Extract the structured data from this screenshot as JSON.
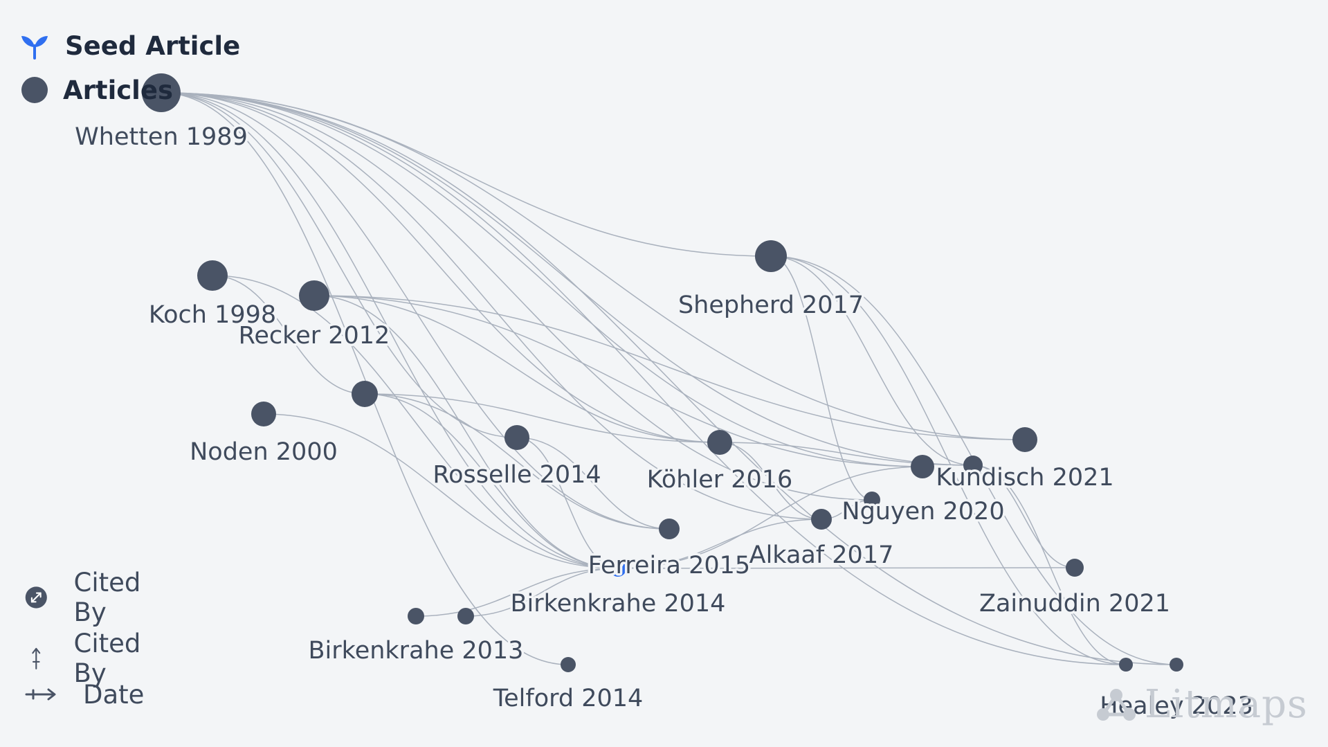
{
  "legend": {
    "seed_label": "Seed Article",
    "articles_label": "Articles",
    "seed_icon": "sprout-icon",
    "article_icon": "dot-icon"
  },
  "axis_legend": {
    "size_label": "Cited By",
    "size_icon": "expand-diagonal-icon",
    "y_label": "Cited By",
    "y_icon": "arrow-up-icon",
    "x_label": "Date",
    "x_icon": "arrow-right-icon"
  },
  "watermark": {
    "text": "Litmaps",
    "icon": "litmaps-logo-icon"
  },
  "colors": {
    "node": "#4a5466",
    "seed": "#2f6ff0",
    "edge": "#a9b1bd",
    "text": "#3f4a5c"
  },
  "articles": [
    {
      "id": "whetten1989",
      "label": "Whetten 1989"
    },
    {
      "id": "koch1998",
      "label": "Koch 1998"
    },
    {
      "id": "recker2012",
      "label": "Recker 2012"
    },
    {
      "id": "noden2000",
      "label": "Noden 2000"
    },
    {
      "id": "unlabeled_a",
      "label": ""
    },
    {
      "id": "rosselle2014",
      "label": "Rosselle 2014"
    },
    {
      "id": "shepherd2017",
      "label": "Shepherd 2017"
    },
    {
      "id": "kohler2016",
      "label": "Köhler 2016"
    },
    {
      "id": "kundisch2021",
      "label": "Kundisch 2021"
    },
    {
      "id": "unlabeled_b",
      "label": ""
    },
    {
      "id": "unlabeled_c",
      "label": ""
    },
    {
      "id": "nguyen2020",
      "label": "Nguyen 2020"
    },
    {
      "id": "alkaaf2017",
      "label": "Alkaaf 2017"
    },
    {
      "id": "ferreira2015",
      "label": "Ferreira 2015"
    },
    {
      "id": "birkenkrahe2014",
      "label": "Birkenkrahe 2014",
      "seed": true
    },
    {
      "id": "zainuddin2021",
      "label": "Zainuddin 2021"
    },
    {
      "id": "birkenkrahe2013",
      "label": "Birkenkrahe 2013"
    },
    {
      "id": "unlabeled_d",
      "label": ""
    },
    {
      "id": "telford2014",
      "label": "Telford 2014"
    },
    {
      "id": "unlabeled_e",
      "label": ""
    },
    {
      "id": "healey2023",
      "label": "Healey 2023"
    }
  ],
  "citations": [
    [
      "whetten1989",
      "shepherd2017"
    ],
    [
      "whetten1989",
      "kundisch2021"
    ],
    [
      "whetten1989",
      "kohler2016"
    ],
    [
      "whetten1989",
      "rosselle2014"
    ],
    [
      "whetten1989",
      "birkenkrahe2014"
    ],
    [
      "whetten1989",
      "telford2014"
    ],
    [
      "whetten1989",
      "nguyen2020"
    ],
    [
      "whetten1989",
      "alkaaf2017"
    ],
    [
      "whetten1989",
      "unlabeled_c"
    ],
    [
      "whetten1989",
      "unlabeled_e"
    ],
    [
      "whetten1989",
      "healey2023"
    ],
    [
      "whetten1989",
      "ferreira2015"
    ],
    [
      "whetten1989",
      "unlabeled_b"
    ],
    [
      "koch1998",
      "unlabeled_a"
    ],
    [
      "koch1998",
      "birkenkrahe2014"
    ],
    [
      "recker2012",
      "kundisch2021"
    ],
    [
      "recker2012",
      "kohler2016"
    ],
    [
      "recker2012",
      "birkenkrahe2014"
    ],
    [
      "recker2012",
      "unlabeled_b"
    ],
    [
      "noden2000",
      "birkenkrahe2014"
    ],
    [
      "unlabeled_a",
      "kohler2016"
    ],
    [
      "unlabeled_a",
      "ferreira2015"
    ],
    [
      "unlabeled_a",
      "birkenkrahe2014"
    ],
    [
      "rosselle2014",
      "birkenkrahe2014"
    ],
    [
      "rosselle2014",
      "ferreira2015"
    ],
    [
      "shepherd2017",
      "unlabeled_c"
    ],
    [
      "shepherd2017",
      "unlabeled_e"
    ],
    [
      "shepherd2017",
      "healey2023"
    ],
    [
      "shepherd2017",
      "nguyen2020"
    ],
    [
      "kohler2016",
      "alkaaf2017"
    ],
    [
      "kohler2016",
      "unlabeled_c"
    ],
    [
      "birkenkrahe2014",
      "zainuddin2021"
    ],
    [
      "birkenkrahe2014",
      "unlabeled_b"
    ],
    [
      "birkenkrahe2014",
      "alkaaf2017"
    ],
    [
      "birkenkrahe2014",
      "birkenkrahe2013"
    ],
    [
      "birkenkrahe2014",
      "unlabeled_d"
    ],
    [
      "alkaaf2017",
      "nguyen2020"
    ],
    [
      "unlabeled_c",
      "unlabeled_e"
    ],
    [
      "unlabeled_c",
      "zainuddin2021"
    ]
  ]
}
